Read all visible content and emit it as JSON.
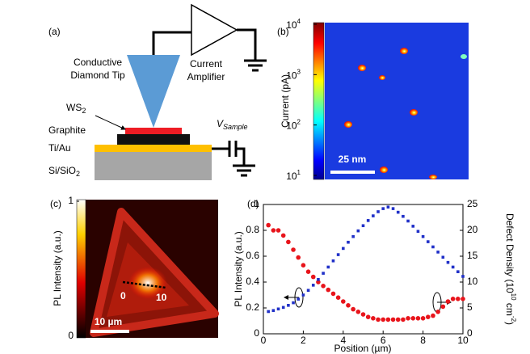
{
  "panel_a": {
    "label": "(a)",
    "tip": [
      "Conductive",
      "Diamond Tip"
    ],
    "amplifier": [
      "Current",
      "Amplifier"
    ],
    "ws2": {
      "main": "WS",
      "sub": "2"
    },
    "graphite": "Graphite",
    "tiau": "Ti/Au",
    "substrate": {
      "main": "Si/SiO",
      "sub": "2"
    },
    "vsample": {
      "main": "V",
      "sub": "Sample"
    }
  },
  "panel_b": {
    "label": "(b)",
    "colorbar_label": "Current (pA)",
    "colorbar_log": true,
    "colorbar_lim": [
      10,
      10000
    ],
    "colorbar_ticks": [
      {
        "value": 10,
        "base": "10",
        "exp": "1"
      },
      {
        "value": 100,
        "base": "10",
        "exp": "2"
      },
      {
        "value": 1000,
        "base": "10",
        "exp": "3"
      },
      {
        "value": 10000,
        "base": "10",
        "exp": "4"
      }
    ],
    "scale_bar": "25 nm"
  },
  "panel_c": {
    "label": "(c)",
    "colorbar_label": "PL Intensity (a.u.)",
    "colorbar_lim": [
      0,
      1
    ],
    "colorbar_ticks": [
      0,
      1
    ],
    "scale_bar": "10 µm",
    "line_start": "0",
    "line_end": "10"
  },
  "chart_data": {
    "type": "scatter",
    "label": "(d)",
    "x_label": "Position (µm)",
    "y_label": "PL Intensity (a.u.)",
    "y2_label": {
      "text": "Defect Density (",
      "base": "10",
      "exp": "10",
      "unit": " cm",
      "unit_exp": "-2",
      "close": ")"
    },
    "xlim": [
      0,
      10
    ],
    "xticks": [
      0,
      2,
      4,
      6,
      8,
      10
    ],
    "ylim": [
      0,
      1
    ],
    "yticks": [
      0,
      0.2,
      0.4,
      0.6,
      0.8,
      1
    ],
    "y2lim": [
      0,
      25
    ],
    "y2ticks": [
      0,
      5,
      10,
      15,
      20,
      25
    ],
    "x": [
      0.25,
      0.5,
      0.75,
      1,
      1.25,
      1.5,
      1.75,
      2,
      2.25,
      2.5,
      2.75,
      3,
      3.25,
      3.5,
      3.75,
      4,
      4.25,
      4.5,
      4.75,
      5,
      5.25,
      5.5,
      5.75,
      6,
      6.25,
      6.5,
      6.75,
      7,
      7.25,
      7.5,
      7.75,
      8,
      8.25,
      8.5,
      8.75,
      9,
      9.25,
      9.5,
      9.75,
      10
    ],
    "series": [
      {
        "color": "#e8141b",
        "marker": "circle",
        "values": [
          0.84,
          0.8,
          0.8,
          0.76,
          0.71,
          0.65,
          0.59,
          0.53,
          0.48,
          0.44,
          0.4,
          0.37,
          0.34,
          0.31,
          0.28,
          0.25,
          0.22,
          0.19,
          0.17,
          0.15,
          0.13,
          0.12,
          0.11,
          0.11,
          0.11,
          0.11,
          0.11,
          0.11,
          0.12,
          0.12,
          0.12,
          0.12,
          0.13,
          0.14,
          0.17,
          0.21,
          0.25,
          0.27,
          0.27,
          0.27
        ]
      },
      {
        "color": "#2030c8",
        "marker": "square",
        "axis": "y2",
        "values": [
          4.3,
          4.5,
          4.8,
          5.1,
          5.5,
          6,
          6.7,
          7.5,
          8.4,
          9.4,
          10.5,
          11.7,
          12.9,
          14.1,
          15.3,
          16.5,
          17.7,
          18.8,
          19.9,
          20.9,
          21.9,
          22.8,
          23.6,
          24.2,
          24.5,
          24.2,
          23.5,
          22.7,
          21.8,
          20.8,
          19.8,
          18.8,
          17.8,
          16.8,
          15.8,
          14.8,
          13.8,
          12.9,
          12,
          11.1
        ]
      }
    ]
  }
}
